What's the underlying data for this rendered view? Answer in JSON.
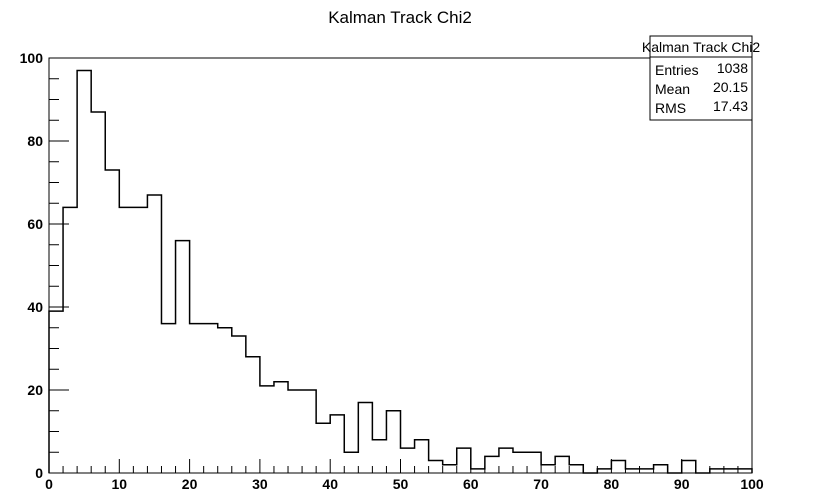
{
  "chart_data": {
    "type": "bar",
    "title": "Kalman Track Chi2",
    "xlabel": "",
    "ylabel": "",
    "xlim": [
      0,
      100
    ],
    "ylim": [
      0,
      105
    ],
    "bin_width": 2,
    "x": [
      1,
      3,
      5,
      7,
      9,
      11,
      13,
      15,
      17,
      19,
      21,
      23,
      25,
      27,
      29,
      31,
      33,
      35,
      37,
      39,
      41,
      43,
      45,
      47,
      49,
      51,
      53,
      55,
      57,
      59,
      61,
      63,
      65,
      67,
      69,
      71,
      73,
      75,
      77,
      79,
      81,
      83,
      85,
      87,
      89,
      91,
      93,
      95,
      97,
      99
    ],
    "values": [
      39,
      64,
      97,
      87,
      73,
      64,
      64,
      67,
      36,
      56,
      36,
      36,
      35,
      33,
      28,
      21,
      22,
      20,
      20,
      12,
      14,
      5,
      17,
      8,
      15,
      6,
      8,
      3,
      2,
      6,
      1,
      4,
      6,
      5,
      5,
      2,
      4,
      2,
      0,
      1,
      3,
      1,
      1,
      2,
      0,
      3,
      0,
      1,
      1,
      1
    ],
    "xticks": [
      "0",
      "10",
      "20",
      "30",
      "40",
      "50",
      "60",
      "70",
      "80",
      "90",
      "100"
    ],
    "yticks": [
      "0",
      "20",
      "40",
      "60",
      "80",
      "100"
    ],
    "grid": false,
    "stats_box": {
      "title": "Kalman Track Chi2",
      "rows": [
        {
          "label": "Entries",
          "value": "1038"
        },
        {
          "label": "Mean",
          "value": "20.15"
        },
        {
          "label": "RMS",
          "value": "17.43"
        }
      ]
    }
  }
}
